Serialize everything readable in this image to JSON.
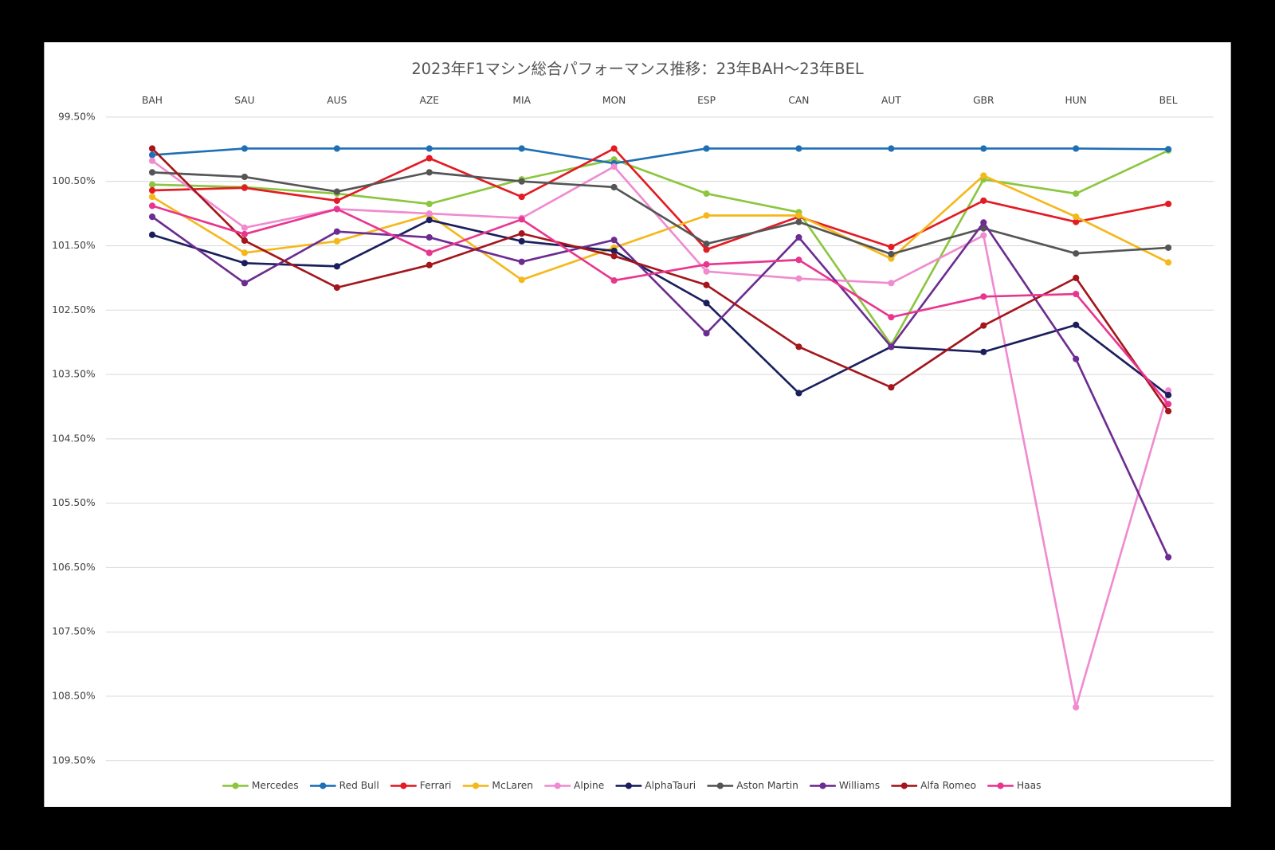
{
  "chart_data": {
    "type": "line",
    "title": "2023年F1マシン総合パフォーマンス推移：23年BAH〜23年BEL",
    "categories": [
      "BAH",
      "SAU",
      "AUS",
      "AZE",
      "MIA",
      "MON",
      "ESP",
      "CAN",
      "AUT",
      "GBR",
      "HUN",
      "BEL"
    ],
    "ylim": [
      99.5,
      109.5
    ],
    "y_reversed": true,
    "grid": true,
    "legend": "bottom",
    "yticks": [
      {
        "value": 99.5,
        "label": "99.50%"
      },
      {
        "value": 100.5,
        "label": "100.50%"
      },
      {
        "value": 101.5,
        "label": "101.50%"
      },
      {
        "value": 102.5,
        "label": "102.50%"
      },
      {
        "value": 103.5,
        "label": "103.50%"
      },
      {
        "value": 104.5,
        "label": "104.50%"
      },
      {
        "value": 105.5,
        "label": "105.50%"
      },
      {
        "value": 106.5,
        "label": "106.50%"
      },
      {
        "value": 107.5,
        "label": "107.50%"
      },
      {
        "value": 108.5,
        "label": "108.50%"
      },
      {
        "value": 109.5,
        "label": "109.50%"
      }
    ],
    "series": [
      {
        "name": "Mercedes",
        "color": "#8cc63f",
        "values": [
          100.55,
          100.59,
          100.69,
          100.85,
          100.47,
          100.16,
          100.69,
          100.98,
          103.04,
          100.47,
          100.69,
          100.02
        ]
      },
      {
        "name": "Red Bull",
        "color": "#1f6fb5",
        "values": [
          100.09,
          99.99,
          99.99,
          99.99,
          99.99,
          100.22,
          99.99,
          99.99,
          99.99,
          99.99,
          99.99,
          100.0
        ]
      },
      {
        "name": "Ferrari",
        "color": "#e31b23",
        "values": [
          100.64,
          100.6,
          100.8,
          100.14,
          100.74,
          99.99,
          101.56,
          101.05,
          101.52,
          100.8,
          101.13,
          100.85
        ]
      },
      {
        "name": "McLaren",
        "color": "#f5b81b",
        "values": [
          100.74,
          101.61,
          101.43,
          101.02,
          102.03,
          101.53,
          101.03,
          101.03,
          101.7,
          100.41,
          101.05,
          101.76
        ]
      },
      {
        "name": "Alpine",
        "color": "#f08bd0",
        "values": [
          100.18,
          101.22,
          100.93,
          101.0,
          101.07,
          100.27,
          101.9,
          102.01,
          102.08,
          101.34,
          108.67,
          103.75
        ]
      },
      {
        "name": "AlphaTauri",
        "color": "#1a1f5c",
        "values": [
          101.33,
          101.77,
          101.82,
          101.1,
          101.43,
          101.58,
          102.39,
          103.79,
          103.07,
          103.15,
          102.73,
          103.82
        ]
      },
      {
        "name": "Aston Martin",
        "color": "#555555",
        "values": [
          100.36,
          100.43,
          100.66,
          100.36,
          100.5,
          100.59,
          101.47,
          101.13,
          101.63,
          101.23,
          101.62,
          101.53
        ]
      },
      {
        "name": "Williams",
        "color": "#6c2c91",
        "values": [
          101.05,
          102.08,
          101.28,
          101.37,
          101.75,
          101.41,
          102.86,
          101.37,
          103.07,
          101.14,
          103.26,
          106.34
        ]
      },
      {
        "name": "Alfa Romeo",
        "color": "#a3161b",
        "values": [
          99.99,
          101.42,
          102.15,
          101.8,
          101.31,
          101.66,
          102.11,
          103.07,
          103.7,
          102.74,
          102.0,
          104.07
        ]
      },
      {
        "name": "Haas",
        "color": "#e8368f",
        "values": [
          100.88,
          101.32,
          100.93,
          101.61,
          101.09,
          102.04,
          101.79,
          101.72,
          102.61,
          102.29,
          102.25,
          103.96
        ]
      }
    ]
  }
}
